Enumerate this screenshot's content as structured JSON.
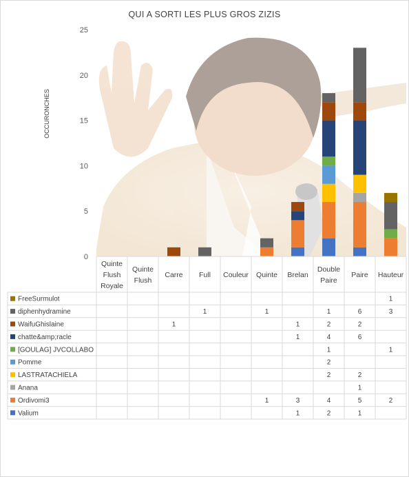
{
  "chart_data": {
    "type": "bar",
    "stacked": true,
    "title": "QUI A SORTI LES PLUS GROS ZIZIS",
    "ylabel": "OCCURONCHES",
    "ylim": [
      0,
      25
    ],
    "yticks": [
      "0",
      "5",
      "10",
      "15",
      "20",
      "25"
    ],
    "categories": [
      [
        "Quinte",
        "Flush",
        "Royale"
      ],
      [
        "Quinte",
        "Flush"
      ],
      [
        "Carre"
      ],
      [
        "Full"
      ],
      [
        "Couleur"
      ],
      [
        "Quinte"
      ],
      [
        "Brelan"
      ],
      [
        "Double",
        "Paire"
      ],
      [
        "Paire"
      ],
      [
        "Hauteur"
      ]
    ],
    "grid": false,
    "legend": "data-table",
    "background_image": "man-laughing-photo",
    "series": [
      {
        "name": "Valium",
        "color": "#4472c4",
        "values": [
          null,
          null,
          null,
          null,
          null,
          null,
          1,
          2,
          1,
          null
        ]
      },
      {
        "name": "Ordivomi3",
        "color": "#ed7d31",
        "values": [
          null,
          null,
          null,
          null,
          null,
          1,
          3,
          4,
          5,
          2
        ]
      },
      {
        "name": "Anana",
        "color": "#a5a5a5",
        "values": [
          null,
          null,
          null,
          null,
          null,
          null,
          null,
          null,
          1,
          null
        ]
      },
      {
        "name": "LASTRATACHIELA",
        "color": "#ffc000",
        "values": [
          null,
          null,
          null,
          null,
          null,
          null,
          null,
          2,
          2,
          null
        ]
      },
      {
        "name": "Pomme",
        "color": "#5b9bd5",
        "values": [
          null,
          null,
          null,
          null,
          null,
          null,
          null,
          2,
          null,
          null
        ]
      },
      {
        "name": "[GOULAG] JVCOLLABO",
        "color": "#70ad47",
        "values": [
          null,
          null,
          null,
          null,
          null,
          null,
          null,
          1,
          null,
          1
        ]
      },
      {
        "name": "chatte&amp;racle",
        "color": "#264478",
        "values": [
          null,
          null,
          null,
          null,
          null,
          null,
          1,
          4,
          6,
          null
        ]
      },
      {
        "name": "WaifuGhislaine",
        "color": "#9e480e",
        "values": [
          null,
          null,
          1,
          null,
          null,
          null,
          1,
          2,
          2,
          null
        ]
      },
      {
        "name": "diphenhydramine",
        "color": "#636363",
        "values": [
          null,
          null,
          null,
          1,
          null,
          1,
          null,
          1,
          6,
          3
        ]
      },
      {
        "name": "FreeSurmulot",
        "color": "#997300",
        "values": [
          null,
          null,
          null,
          null,
          null,
          null,
          null,
          null,
          null,
          1
        ]
      }
    ]
  }
}
